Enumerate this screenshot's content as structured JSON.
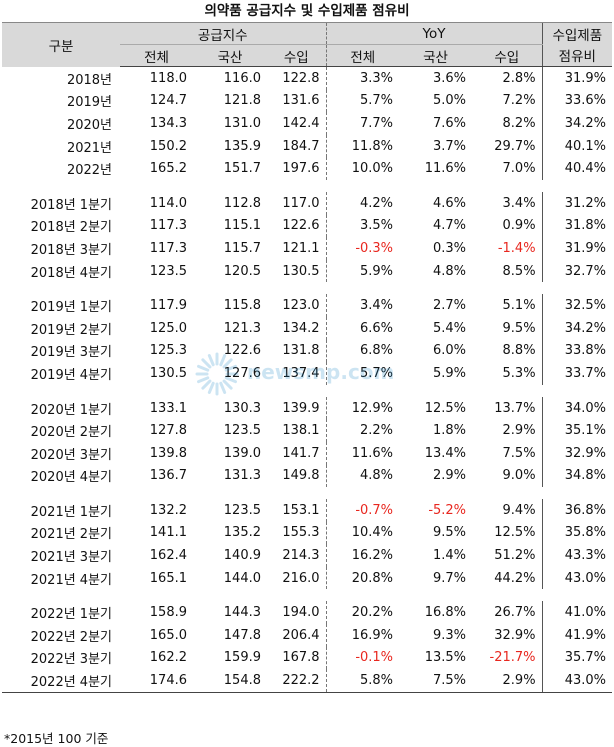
{
  "title": "의약품 공급지수 및 수입제품 점유비",
  "header": {
    "col_label": "구분",
    "group_supply": "공급지수",
    "group_yoy": "YoY",
    "group_share": "수입제품",
    "share_sub": "점유비",
    "sub_total": "전체",
    "sub_domestic": "국산",
    "sub_import": "수입"
  },
  "rows": [
    {
      "label": "2018년",
      "vals": [
        "118.0",
        "116.0",
        "122.8",
        "3.3%",
        "3.6%",
        "2.8%",
        "31.9%"
      ]
    },
    {
      "label": "2019년",
      "vals": [
        "124.7",
        "121.8",
        "131.6",
        "5.7%",
        "5.0%",
        "7.2%",
        "33.6%"
      ]
    },
    {
      "label": "2020년",
      "vals": [
        "134.3",
        "131.0",
        "142.4",
        "7.7%",
        "7.6%",
        "8.2%",
        "34.2%"
      ]
    },
    {
      "label": "2021년",
      "vals": [
        "150.2",
        "135.9",
        "184.7",
        "11.8%",
        "3.7%",
        "29.7%",
        "40.1%"
      ]
    },
    {
      "label": "2022년",
      "vals": [
        "165.2",
        "151.7",
        "197.6",
        "10.0%",
        "11.6%",
        "7.0%",
        "40.4%"
      ]
    },
    {
      "label": "2018년 1분기",
      "vals": [
        "114.0",
        "112.8",
        "117.0",
        "4.2%",
        "4.6%",
        "3.4%",
        "31.2%"
      ]
    },
    {
      "label": "2018년 2분기",
      "vals": [
        "117.3",
        "115.1",
        "122.6",
        "3.5%",
        "4.7%",
        "0.9%",
        "31.8%"
      ]
    },
    {
      "label": "2018년 3분기",
      "vals": [
        "117.3",
        "115.7",
        "121.1",
        "-0.3%",
        "0.3%",
        "-1.4%",
        "31.9%"
      ]
    },
    {
      "label": "2018년 4분기",
      "vals": [
        "123.5",
        "120.5",
        "130.5",
        "5.9%",
        "4.8%",
        "8.5%",
        "32.7%"
      ]
    },
    {
      "label": "2019년 1분기",
      "vals": [
        "117.9",
        "115.8",
        "123.0",
        "3.4%",
        "2.7%",
        "5.1%",
        "32.5%"
      ]
    },
    {
      "label": "2019년 2분기",
      "vals": [
        "125.0",
        "121.3",
        "134.2",
        "6.6%",
        "5.4%",
        "9.5%",
        "34.2%"
      ]
    },
    {
      "label": "2019년 3분기",
      "vals": [
        "125.3",
        "122.6",
        "131.8",
        "6.8%",
        "6.0%",
        "8.8%",
        "33.8%"
      ]
    },
    {
      "label": "2019년 4분기",
      "vals": [
        "130.5",
        "127.6",
        "137.4",
        "5.7%",
        "5.9%",
        "5.3%",
        "33.7%"
      ]
    },
    {
      "label": "2020년 1분기",
      "vals": [
        "133.1",
        "130.3",
        "139.9",
        "12.9%",
        "12.5%",
        "13.7%",
        "34.0%"
      ]
    },
    {
      "label": "2020년 2분기",
      "vals": [
        "127.8",
        "123.5",
        "138.1",
        "2.2%",
        "1.8%",
        "2.9%",
        "35.1%"
      ]
    },
    {
      "label": "2020년 3분기",
      "vals": [
        "139.8",
        "139.0",
        "141.7",
        "11.6%",
        "13.4%",
        "7.5%",
        "32.9%"
      ]
    },
    {
      "label": "2020년 4분기",
      "vals": [
        "136.7",
        "131.3",
        "149.8",
        "4.8%",
        "2.9%",
        "9.0%",
        "34.8%"
      ]
    },
    {
      "label": "2021년 1분기",
      "vals": [
        "132.2",
        "123.5",
        "153.1",
        "-0.7%",
        "-5.2%",
        "9.4%",
        "36.8%"
      ]
    },
    {
      "label": "2021년 2분기",
      "vals": [
        "141.1",
        "135.2",
        "155.3",
        "10.4%",
        "9.5%",
        "12.5%",
        "35.8%"
      ]
    },
    {
      "label": "2021년 3분기",
      "vals": [
        "162.4",
        "140.9",
        "214.3",
        "16.2%",
        "1.4%",
        "51.2%",
        "43.3%"
      ]
    },
    {
      "label": "2021년 4분기",
      "vals": [
        "165.1",
        "144.0",
        "216.0",
        "20.8%",
        "9.7%",
        "44.2%",
        "43.0%"
      ]
    },
    {
      "label": "2022년 1분기",
      "vals": [
        "158.9",
        "144.3",
        "194.0",
        "20.2%",
        "16.8%",
        "26.7%",
        "41.0%"
      ]
    },
    {
      "label": "2022년 2분기",
      "vals": [
        "165.0",
        "147.8",
        "206.4",
        "16.9%",
        "9.3%",
        "32.9%",
        "41.9%"
      ]
    },
    {
      "label": "2022년 3분기",
      "vals": [
        "162.2",
        "159.9",
        "167.8",
        "-0.1%",
        "13.5%",
        "-21.7%",
        "35.7%"
      ]
    },
    {
      "label": "2022년 4분기",
      "vals": [
        "174.6",
        "154.8",
        "222.2",
        "5.8%",
        "7.5%",
        "2.9%",
        "43.0%"
      ]
    }
  ],
  "group_sizes": [
    5,
    4,
    4,
    4,
    4,
    4
  ],
  "footnote": "*2015년 100 기준",
  "watermark": "newsmp.com",
  "colors": {
    "header_bg": "#d9d9d9",
    "negative": "#e8271f",
    "watermark": "#1e88c8"
  }
}
